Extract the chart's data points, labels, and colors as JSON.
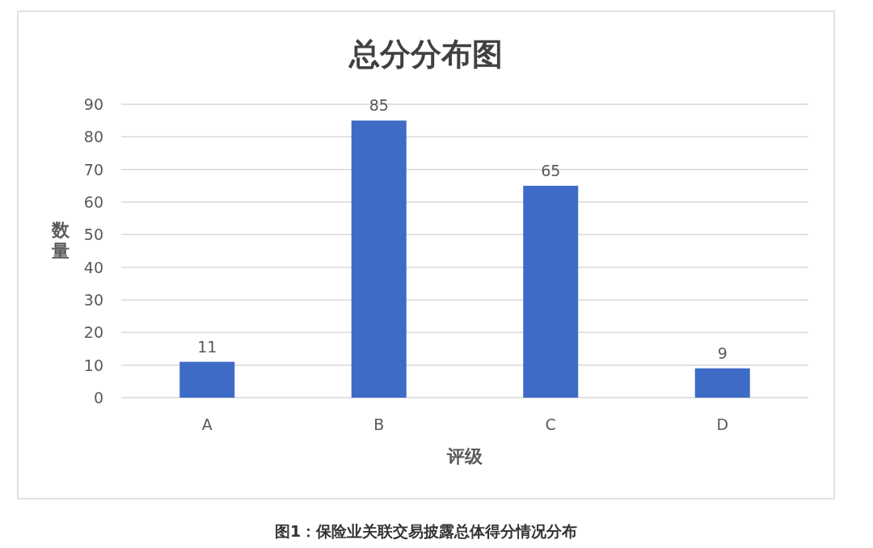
{
  "chart_data": {
    "type": "bar",
    "title": "总分分布图",
    "xlabel": "评级",
    "ylabel": "数量",
    "categories": [
      "A",
      "B",
      "C",
      "D"
    ],
    "values": [
      11,
      85,
      65,
      9
    ],
    "color": "#3e6bc6",
    "ylim": [
      0,
      90
    ],
    "yticks": [
      0,
      10,
      20,
      30,
      40,
      50,
      60,
      70,
      80,
      90
    ],
    "grid": "y",
    "data_labels": true,
    "annotations": [
      "图1：保险业关联交易披露总体得分情况分布"
    ]
  }
}
